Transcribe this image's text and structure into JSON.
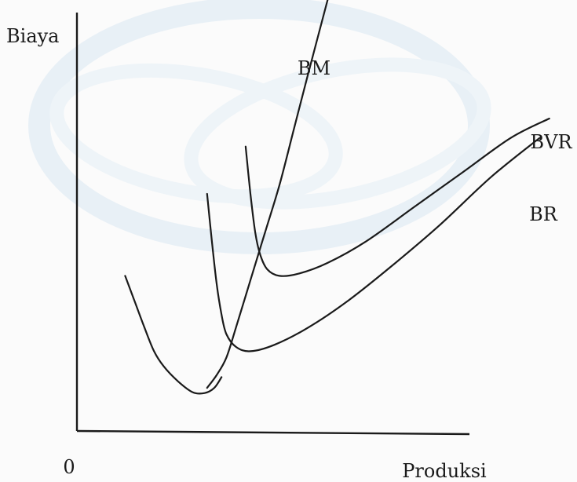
{
  "chart_data": {
    "type": "line",
    "title": "",
    "ylabel": "Biaya",
    "xlabel": "Produksi",
    "origin_label": "0",
    "xlim": [
      0,
      100
    ],
    "ylim": [
      0,
      100
    ],
    "grid": false,
    "legend": "none",
    "series": [
      {
        "name": "BM",
        "label_position": "above-end",
        "color": "#1a1a1a",
        "points": [
          [
            27,
            10
          ],
          [
            29,
            13
          ],
          [
            31,
            17
          ],
          [
            33,
            24
          ],
          [
            36,
            35
          ],
          [
            39,
            46
          ],
          [
            42,
            57
          ],
          [
            45,
            70
          ],
          [
            48,
            83
          ],
          [
            52,
            100
          ]
        ]
      },
      {
        "name": "BVR",
        "label_position": "right-end",
        "color": "#1a1a1a",
        "points": [
          [
            35,
            66
          ],
          [
            36,
            55
          ],
          [
            37,
            46
          ],
          [
            38,
            41
          ],
          [
            39.5,
            37.5
          ],
          [
            42,
            36
          ],
          [
            46,
            36.5
          ],
          [
            52,
            39
          ],
          [
            60,
            44
          ],
          [
            70,
            52
          ],
          [
            80,
            60
          ],
          [
            90,
            68
          ],
          [
            98,
            72.5
          ]
        ]
      },
      {
        "name": "BR",
        "label_position": "right-end",
        "color": "#1a1a1a",
        "points": [
          [
            27,
            55
          ],
          [
            28,
            44
          ],
          [
            29,
            34
          ],
          [
            30,
            27
          ],
          [
            31,
            22.5
          ],
          [
            33,
            19.5
          ],
          [
            36,
            18.5
          ],
          [
            41,
            20
          ],
          [
            48,
            24
          ],
          [
            56,
            30
          ],
          [
            65,
            38
          ],
          [
            75,
            47.5
          ],
          [
            86,
            59
          ],
          [
            96,
            68
          ]
        ]
      },
      {
        "name": "",
        "color": "#1a1a1a",
        "points": [
          [
            10,
            36
          ],
          [
            12,
            30
          ],
          [
            14,
            24
          ],
          [
            16,
            18.5
          ],
          [
            18,
            15
          ],
          [
            21,
            11.5
          ],
          [
            24,
            9
          ],
          [
            26.5,
            8.8
          ],
          [
            28.5,
            10
          ],
          [
            30,
            12.5
          ]
        ]
      }
    ]
  }
}
